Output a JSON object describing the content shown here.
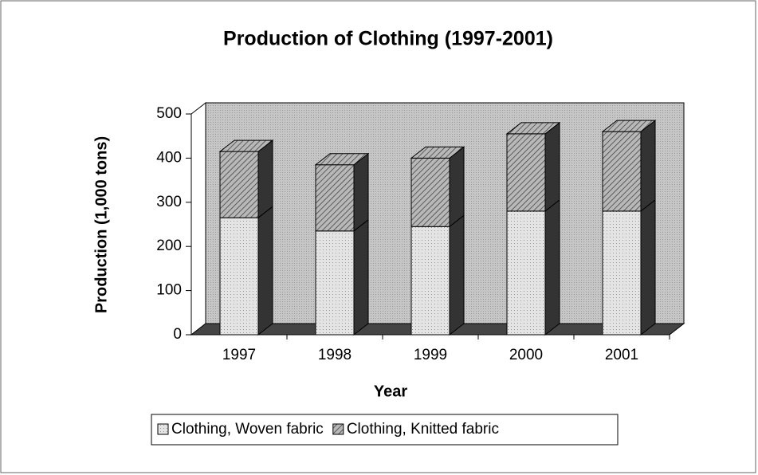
{
  "chart_data": {
    "type": "bar",
    "stacked": true,
    "title": "Production of Clothing (1997-2001)",
    "x_label": "Year",
    "y_label": "Production (1,000 tons)",
    "categories": [
      "1997",
      "1998",
      "1999",
      "2000",
      "2001"
    ],
    "series": [
      {
        "name": "Clothing, Woven fabric",
        "color": "#dcdcdc",
        "values": [
          265,
          235,
          245,
          280,
          280
        ]
      },
      {
        "name": "Clothing, Knitted fabric",
        "color": "#8a8a8a",
        "values": [
          150,
          150,
          155,
          175,
          180
        ]
      }
    ],
    "ylim": [
      0,
      500
    ],
    "yticks": [
      0,
      100,
      200,
      300,
      400,
      500
    ]
  }
}
